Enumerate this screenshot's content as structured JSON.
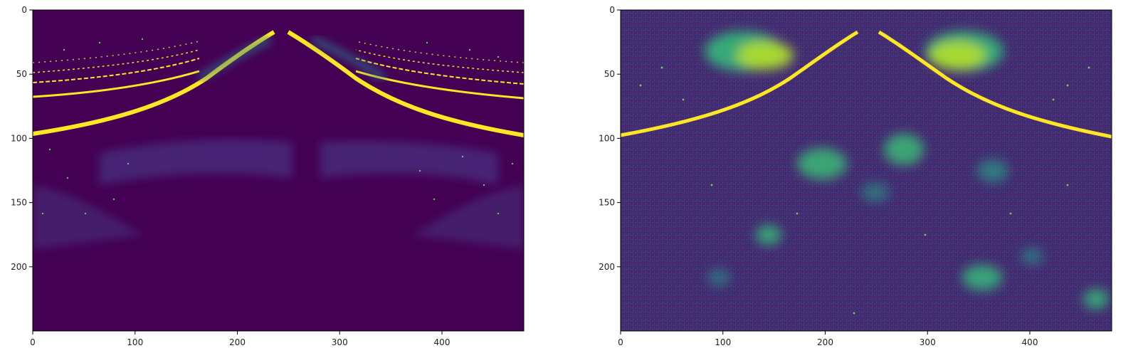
{
  "chart_data": [
    {
      "type": "heatmap",
      "title": "",
      "xlabel": "",
      "ylabel": "",
      "colormap": "viridis",
      "colors": {
        "low": "#440154",
        "mid": "#21918c",
        "high": "#fde725"
      },
      "xlim": [
        0,
        480
      ],
      "ylim": [
        250,
        0
      ],
      "xticks": [
        0,
        100,
        200,
        300,
        400
      ],
      "yticks": [
        0,
        50,
        100,
        150,
        200
      ],
      "xtick_labels": [
        "0",
        "100",
        "200",
        "300",
        "400"
      ],
      "ytick_labels": [
        "0",
        "50",
        "100",
        "150",
        "200"
      ],
      "grid": false,
      "description_of_values": "dark background; bright yellow curved arcs rising from left and right edges toward apex near x=240,y=15; main arc reaches y≈98 at the edges; faint band near y≈100-130; sparse speckles"
    },
    {
      "type": "heatmap",
      "title": "",
      "xlabel": "",
      "ylabel": "",
      "colormap": "viridis",
      "colors": {
        "low": "#440154",
        "mid": "#21918c",
        "high": "#fde725"
      },
      "xlim": [
        0,
        480
      ],
      "ylim": [
        250,
        0
      ],
      "xticks": [
        0,
        100,
        200,
        300,
        400
      ],
      "yticks": [
        0,
        50,
        100,
        150,
        200
      ],
      "xtick_labels": [
        "0",
        "100",
        "200",
        "300",
        "400"
      ],
      "ytick_labels": [
        "0",
        "50",
        "100",
        "150",
        "200"
      ],
      "grid": false,
      "description_of_values": "noisy purple background; bright clusters near (120,40),(330,40),(200,120),(280,110),(150,175),(340,210),(460,220); main arc reaching y≈98 at edges"
    }
  ]
}
